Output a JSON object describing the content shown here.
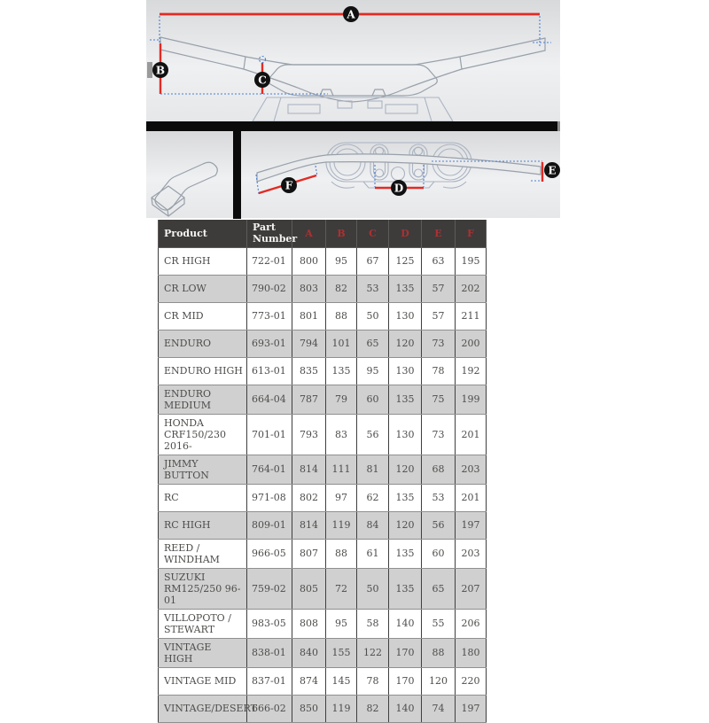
{
  "colors": {
    "dimension-red": "#e12b25",
    "extension-blue": "#4a7fd4",
    "label-bg": "#111111",
    "label-text": "#ffffff",
    "outline-gray": "#98a0aa",
    "clamp-blue-gray": "#abb4c2",
    "header-bg": "#3e3b3b",
    "header-text": "#f4f3f1",
    "header-letter-red": "#ae3030",
    "row-alt-gray": "#d0d0d0",
    "body-text": "#4d4d4b"
  },
  "diagram": {
    "dimension_labels": {
      "a": "A",
      "b": "B",
      "c": "C",
      "d": "D",
      "e": "E",
      "f": "F"
    }
  },
  "table": {
    "headers": [
      "Product",
      "Part Number",
      "A",
      "B",
      "C",
      "D",
      "E",
      "F"
    ],
    "rows": [
      [
        "CR HIGH",
        "722-01",
        "800",
        "95",
        "67",
        "125",
        "63",
        "195"
      ],
      [
        "CR LOW",
        "790-02",
        "803",
        "82",
        "53",
        "135",
        "57",
        "202"
      ],
      [
        "CR MID",
        "773-01",
        "801",
        "88",
        "50",
        "130",
        "57",
        "211"
      ],
      [
        "ENDURO",
        "693-01",
        "794",
        "101",
        "65",
        "120",
        "73",
        "200"
      ],
      [
        "ENDURO HIGH",
        "613-01",
        "835",
        "135",
        "95",
        "130",
        "78",
        "192"
      ],
      [
        "ENDURO MEDIUM",
        "664-04",
        "787",
        "79",
        "60",
        "135",
        "75",
        "199"
      ],
      [
        "HONDA\nCRF150/230\n2016-",
        "701-01",
        "793",
        "83",
        "56",
        "130",
        "73",
        "201"
      ],
      [
        "JIMMY BUTTON",
        "764-01",
        "814",
        "111",
        "81",
        "120",
        "68",
        "203"
      ],
      [
        "RC",
        "971-08",
        "802",
        "97",
        "62",
        "135",
        "53",
        "201"
      ],
      [
        "RC HIGH",
        "809-01",
        "814",
        "119",
        "84",
        "120",
        "56",
        "197"
      ],
      [
        "REED /\nWINDHAM",
        "966-05",
        "807",
        "88",
        "61",
        "135",
        "60",
        "203"
      ],
      [
        "SUZUKI\nRM125/250 96-01",
        "759-02",
        "805",
        "72",
        "50",
        "135",
        "65",
        "207"
      ],
      [
        "VILLOPOTO /\nSTEWART",
        "983-05",
        "808",
        "95",
        "58",
        "140",
        "55",
        "206"
      ],
      [
        "VINTAGE HIGH",
        "838-01",
        "840",
        "155",
        "122",
        "170",
        "88",
        "180"
      ],
      [
        "VINTAGE MID",
        "837-01",
        "874",
        "145",
        "78",
        "170",
        "120",
        "220"
      ],
      [
        "VINTAGE/DESERT",
        "666-02",
        "850",
        "119",
        "82",
        "140",
        "74",
        "197"
      ]
    ]
  }
}
